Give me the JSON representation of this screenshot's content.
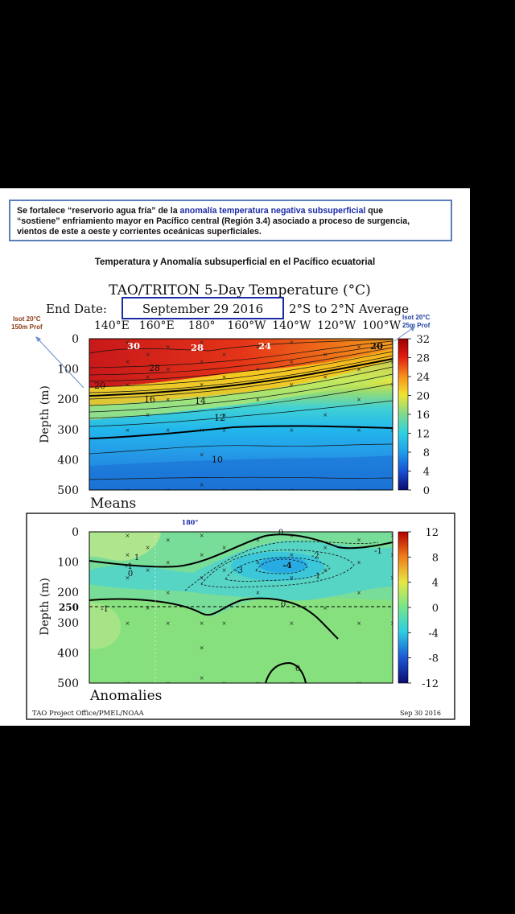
{
  "caption": {
    "line1_a": "Se fortalece “reservorio agua fría” de la ",
    "line1_hl": "anomalía temperatura negativa subsuperficial",
    "line1_b": " que",
    "line2": "“sostiene” enfriamiento mayor en Pacífico central (Región 3.4) asociado a proceso de surgencia,",
    "line3": "vientos de este a oeste y corrientes oceánicas superficiales."
  },
  "slide_title": "Temperatura y Anomalía subsuperficial en el Pacífico ecuatorial",
  "left_note": {
    "line1": "Isot 20°C",
    "line2": "150m Prof"
  },
  "right_note": {
    "line1": "Isot 20°C",
    "line2": "25m Prof"
  },
  "anom_marker": "180°",
  "chart_data": [
    {
      "type": "heatmap",
      "title": "TAO/TRITON 5-Day Temperature (°C)",
      "subtitle_prefix": "End Date:",
      "end_date": "September 29 2016",
      "subtitle_suffix": "2°S to 2°N Average",
      "panel_label": "Means",
      "ylabel": "Depth (m)",
      "x_ticks": [
        "140°E",
        "160°E",
        "180°",
        "160°W",
        "140°W",
        "120°W",
        "100°W"
      ],
      "y_ticks": [
        0,
        100,
        200,
        300,
        400,
        500
      ],
      "ylim": [
        0,
        500
      ],
      "colorbar_ticks": [
        32,
        28,
        24,
        20,
        16,
        12,
        8,
        4,
        0
      ],
      "surface_labels": [
        "30",
        "28",
        "24",
        "20"
      ],
      "contour_labels": [
        "28",
        "20",
        "16",
        "14",
        "12",
        "10"
      ],
      "isotherm_20C_depth_m": {
        "west": 150,
        "east": 25
      }
    },
    {
      "type": "heatmap",
      "panel_label": "Anomalies",
      "ylabel": "Depth (m)",
      "y_ticks": [
        0,
        100,
        200,
        250,
        300,
        400,
        500
      ],
      "ylim": [
        0,
        500
      ],
      "reference_depth_m": 250,
      "colorbar_ticks": [
        12,
        8,
        4,
        0,
        -4,
        -8,
        -12
      ],
      "contour_labels": [
        "0",
        "1",
        "-1",
        "0",
        "-2",
        "-3",
        "-4",
        "-1",
        "1",
        "-1",
        "0",
        "0"
      ],
      "min_anomaly": -4,
      "footer_left": "TAO Project Office/PMEL/NOAA",
      "footer_right": "Sep 30 2016"
    }
  ]
}
